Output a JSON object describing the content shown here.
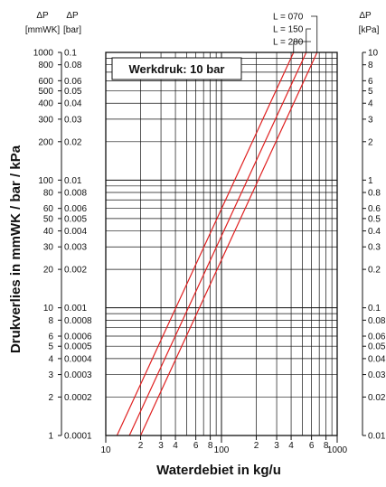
{
  "chart_data": {
    "type": "line",
    "annotation": "Werkdruk: 10 bar",
    "xlabel": "Waterdebiet in kg/u",
    "ylabel": "Drukverlies in mmWK / bar / kPa",
    "x_scale": "log",
    "y_scale": "log",
    "xlim": [
      10,
      1000
    ],
    "ylim_bar": [
      0.0001,
      0.1
    ],
    "grid": true,
    "x_tick_labels": [
      "10",
      "2",
      "3",
      "4",
      "6",
      "8",
      "100",
      "2",
      "3",
      "4",
      "6",
      "8",
      "1000"
    ],
    "x_tick_values": [
      10,
      20,
      30,
      40,
      60,
      80,
      100,
      200,
      300,
      400,
      600,
      800,
      1000
    ],
    "axis_left_mmwk": {
      "header": [
        "ΔP",
        "[mmWK]"
      ],
      "ticks": [
        {
          "label": "1000",
          "bar": 0.1
        },
        {
          "label": "800",
          "bar": 0.08
        },
        {
          "label": "600",
          "bar": 0.06
        },
        {
          "label": "500",
          "bar": 0.05
        },
        {
          "label": "400",
          "bar": 0.04
        },
        {
          "label": "300",
          "bar": 0.03
        },
        {
          "label": "200",
          "bar": 0.02
        },
        {
          "label": "100",
          "bar": 0.01
        },
        {
          "label": "80",
          "bar": 0.008
        },
        {
          "label": "60",
          "bar": 0.006
        },
        {
          "label": "50",
          "bar": 0.005
        },
        {
          "label": "40",
          "bar": 0.004
        },
        {
          "label": "30",
          "bar": 0.003
        },
        {
          "label": "20",
          "bar": 0.002
        },
        {
          "label": "10",
          "bar": 0.001
        },
        {
          "label": "8",
          "bar": 0.0008
        },
        {
          "label": "6",
          "bar": 0.0006
        },
        {
          "label": "5",
          "bar": 0.0005
        },
        {
          "label": "4",
          "bar": 0.0004
        },
        {
          "label": "3",
          "bar": 0.0003
        },
        {
          "label": "2",
          "bar": 0.0002
        },
        {
          "label": "1",
          "bar": 0.0001
        }
      ]
    },
    "axis_left_bar": {
      "header": [
        "ΔP",
        "[bar]"
      ],
      "ticks": [
        {
          "label": "0.1",
          "bar": 0.1
        },
        {
          "label": "0.08",
          "bar": 0.08
        },
        {
          "label": "0.06",
          "bar": 0.06
        },
        {
          "label": "0.05",
          "bar": 0.05
        },
        {
          "label": "0.04",
          "bar": 0.04
        },
        {
          "label": "0.03",
          "bar": 0.03
        },
        {
          "label": "0.02",
          "bar": 0.02
        },
        {
          "label": "0.01",
          "bar": 0.01
        },
        {
          "label": "0.008",
          "bar": 0.008
        },
        {
          "label": "0.006",
          "bar": 0.006
        },
        {
          "label": "0.005",
          "bar": 0.005
        },
        {
          "label": "0.004",
          "bar": 0.004
        },
        {
          "label": "0.003",
          "bar": 0.003
        },
        {
          "label": "0.002",
          "bar": 0.002
        },
        {
          "label": "0.001",
          "bar": 0.001
        },
        {
          "label": "0.0008",
          "bar": 0.0008
        },
        {
          "label": "0.0006",
          "bar": 0.0006
        },
        {
          "label": "0.0005",
          "bar": 0.0005
        },
        {
          "label": "0.0004",
          "bar": 0.0004
        },
        {
          "label": "0.0003",
          "bar": 0.0003
        },
        {
          "label": "0.0002",
          "bar": 0.0002
        },
        {
          "label": "0.0001",
          "bar": 0.0001
        }
      ]
    },
    "axis_right_kpa": {
      "header": [
        "ΔP",
        "[kPa]"
      ],
      "ticks": [
        {
          "label": "10",
          "bar": 0.1
        },
        {
          "label": "8",
          "bar": 0.08
        },
        {
          "label": "6",
          "bar": 0.06
        },
        {
          "label": "5",
          "bar": 0.05
        },
        {
          "label": "4",
          "bar": 0.04
        },
        {
          "label": "3",
          "bar": 0.03
        },
        {
          "label": "2",
          "bar": 0.02
        },
        {
          "label": "1",
          "bar": 0.01
        },
        {
          "label": "0.8",
          "bar": 0.008
        },
        {
          "label": "0.6",
          "bar": 0.006
        },
        {
          "label": "0.5",
          "bar": 0.005
        },
        {
          "label": "0.4",
          "bar": 0.004
        },
        {
          "label": "0.3",
          "bar": 0.003
        },
        {
          "label": "0.2",
          "bar": 0.002
        },
        {
          "label": "0.1",
          "bar": 0.001
        },
        {
          "label": "0.08",
          "bar": 0.0008
        },
        {
          "label": "0.06",
          "bar": 0.0006
        },
        {
          "label": "0.05",
          "bar": 0.0005
        },
        {
          "label": "0.04",
          "bar": 0.0004
        },
        {
          "label": "0.03",
          "bar": 0.0003
        },
        {
          "label": "0.02",
          "bar": 0.0002
        },
        {
          "label": "0.01",
          "bar": 0.0001
        }
      ]
    },
    "series": [
      {
        "name": "L = 070",
        "color": "#e02020",
        "points": [
          {
            "x": 20,
            "bar": 0.0001
          },
          {
            "x": 670,
            "bar": 0.1
          }
        ]
      },
      {
        "name": "L = 150",
        "color": "#e02020",
        "points": [
          {
            "x": 16,
            "bar": 0.0001
          },
          {
            "x": 540,
            "bar": 0.1
          }
        ]
      },
      {
        "name": "L = 280",
        "color": "#e02020",
        "points": [
          {
            "x": 12.5,
            "bar": 0.0001
          },
          {
            "x": 420,
            "bar": 0.1
          }
        ]
      }
    ]
  }
}
